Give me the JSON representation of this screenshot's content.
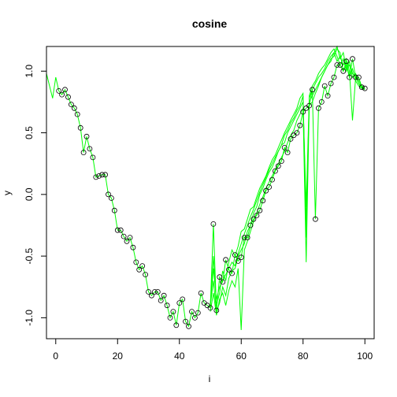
{
  "chart_data": {
    "type": "scatter",
    "title": "cosine",
    "xlabel": "i",
    "ylabel": "y",
    "xlim": [
      -3,
      103
    ],
    "ylim": [
      -1.17,
      1.2
    ],
    "x_ticks": [
      0,
      20,
      40,
      60,
      80,
      100
    ],
    "y_ticks": [
      1.0,
      0.5,
      0.0,
      -0.5,
      -1.0
    ],
    "x_tick_labels": [
      "0",
      "20",
      "40",
      "60",
      "80",
      "100"
    ],
    "y_tick_labels": [
      "1.0",
      "0.5",
      "0.0",
      "-0.5",
      "-1.0"
    ],
    "grid": false,
    "line_color": "#00ff00",
    "point_color": "#000000",
    "points": {
      "x": [
        1,
        2,
        3,
        4,
        5,
        6,
        7,
        8,
        9,
        10,
        11,
        12,
        13,
        14,
        15,
        16,
        17,
        18,
        19,
        20,
        21,
        22,
        23,
        24,
        25,
        26,
        27,
        28,
        29,
        30,
        31,
        32,
        33,
        34,
        35,
        36,
        37,
        38,
        39,
        40,
        41,
        42,
        43,
        44,
        45,
        46,
        47,
        48,
        49,
        50,
        51,
        52,
        53,
        54,
        55,
        56,
        57,
        58,
        59,
        60,
        61,
        62,
        63,
        64,
        65,
        66,
        67,
        68,
        69,
        70,
        71,
        72,
        73,
        74,
        75,
        76,
        77,
        78,
        79,
        80,
        81,
        82,
        83,
        84,
        85,
        86,
        87,
        88,
        89,
        90,
        91,
        92,
        93,
        94,
        95,
        96,
        97,
        98,
        99,
        100
      ],
      "y": [
        0.84,
        0.81,
        0.85,
        0.79,
        0.73,
        0.7,
        0.65,
        0.54,
        0.34,
        0.47,
        0.37,
        0.3,
        0.14,
        0.15,
        0.16,
        0.16,
        0.0,
        -0.03,
        -0.13,
        -0.29,
        -0.29,
        -0.34,
        -0.38,
        -0.35,
        -0.43,
        -0.55,
        -0.61,
        -0.58,
        -0.65,
        -0.79,
        -0.82,
        -0.79,
        -0.79,
        -0.86,
        -0.82,
        -0.9,
        -1.0,
        -0.95,
        -1.06,
        -0.88,
        -0.85,
        -1.03,
        -1.07,
        -0.95,
        -1.0,
        -0.96,
        -0.8,
        -0.88,
        -0.9,
        -0.92,
        -0.24,
        -0.94,
        -0.67,
        -0.71,
        -0.53,
        -0.61,
        -0.64,
        -0.49,
        -0.54,
        -0.51,
        -0.35,
        -0.35,
        -0.25,
        -0.2,
        -0.17,
        -0.13,
        -0.05,
        0.03,
        0.06,
        0.12,
        0.19,
        0.23,
        0.27,
        0.38,
        0.34,
        0.45,
        0.48,
        0.5,
        0.56,
        0.67,
        0.7,
        0.72,
        0.85,
        -0.2,
        0.7,
        0.75,
        0.88,
        0.8,
        0.9,
        0.95,
        1.05,
        1.05,
        1.0,
        1.08,
        0.95,
        1.1,
        0.95,
        0.95,
        0.87,
        0.86
      ]
    },
    "series": [
      {
        "x": [
          -3,
          -2,
          -1,
          0,
          1,
          2,
          3,
          4,
          5,
          6,
          7,
          8,
          9,
          10,
          11,
          12,
          13,
          14,
          15,
          16,
          17,
          18,
          19,
          20,
          21,
          22,
          23,
          24,
          25,
          26,
          27,
          28,
          29,
          30,
          31,
          32,
          33,
          34,
          35,
          36,
          37,
          38,
          39,
          40,
          41,
          42,
          43,
          44,
          45,
          46,
          47,
          48,
          49,
          50,
          51,
          52,
          53,
          54,
          55,
          56,
          57,
          58,
          59,
          60,
          61,
          62,
          63,
          64,
          65,
          66,
          67,
          68,
          69,
          70,
          71,
          72,
          73,
          74,
          75,
          76,
          77,
          78,
          79,
          80,
          81,
          82,
          83,
          84,
          85,
          86,
          87,
          88,
          89,
          90,
          91,
          92,
          93,
          94,
          95,
          96,
          97,
          98,
          99,
          100
        ],
        "y": [
          0.98,
          0.88,
          0.78,
          0.95,
          0.84,
          0.81,
          0.85,
          0.79,
          0.73,
          0.7,
          0.65,
          0.54,
          0.34,
          0.47,
          0.37,
          0.3,
          0.14,
          0.15,
          0.16,
          0.16,
          0.0,
          -0.03,
          -0.13,
          -0.29,
          -0.29,
          -0.34,
          -0.38,
          -0.35,
          -0.43,
          -0.55,
          -0.61,
          -0.58,
          -0.65,
          -0.79,
          -0.82,
          -0.79,
          -0.79,
          -0.86,
          -0.82,
          -0.9,
          -1.0,
          -0.95,
          -1.06,
          -0.88,
          -0.85,
          -1.03,
          -1.07,
          -0.95,
          -1.0,
          -0.96,
          -0.8,
          -0.88,
          -0.9,
          -0.92,
          -0.24,
          -0.94,
          -0.67,
          -0.71,
          -0.53,
          -0.61,
          -0.64,
          -0.49,
          -0.54,
          -0.51,
          -0.35,
          -0.35,
          -0.25,
          -0.2,
          -0.17,
          -0.13,
          -0.05,
          0.03,
          0.06,
          0.12,
          0.19,
          0.23,
          0.27,
          0.38,
          0.34,
          0.45,
          0.48,
          0.5,
          0.56,
          0.67,
          0.7,
          0.72,
          0.85,
          -0.2,
          0.7,
          0.75,
          0.88,
          0.8,
          0.9,
          0.95,
          1.05,
          1.05,
          1.0,
          1.08,
          0.95,
          1.1,
          0.95,
          0.95,
          0.87,
          0.86
        ]
      },
      {
        "x": [
          50,
          51,
          52,
          53,
          54,
          55,
          56,
          57,
          58,
          59,
          60,
          61,
          62,
          63,
          64,
          65,
          66,
          67,
          68,
          69,
          70,
          71,
          72,
          73,
          74,
          75,
          76,
          77,
          78,
          79,
          80,
          81,
          82,
          83,
          84,
          85,
          86,
          87,
          88,
          89,
          90,
          91,
          92,
          93,
          94,
          95,
          96,
          97,
          98,
          99,
          100
        ],
        "y": [
          -0.92,
          -0.5,
          -0.9,
          -0.8,
          -0.62,
          -0.7,
          -0.55,
          -0.45,
          -0.5,
          -0.42,
          -0.3,
          -0.28,
          -0.2,
          -0.12,
          -0.1,
          -0.02,
          0.05,
          0.1,
          0.15,
          0.22,
          0.28,
          0.32,
          0.38,
          0.44,
          0.5,
          0.55,
          0.6,
          0.65,
          0.7,
          0.78,
          0.82,
          -0.35,
          0.8,
          0.88,
          0.92,
          0.98,
          1.02,
          1.05,
          1.1,
          1.15,
          1.18,
          1.12,
          1.05,
          1.1,
          1.0,
          1.08,
          0.98,
          0.95,
          0.9,
          0.88,
          0.86
        ]
      },
      {
        "x": [
          50,
          51,
          52,
          53,
          54,
          55,
          56,
          57,
          58,
          59,
          60,
          61,
          62,
          63,
          64,
          65,
          66,
          67,
          68,
          69,
          70,
          71,
          72,
          73,
          74,
          75,
          76,
          77,
          78,
          79,
          80,
          81,
          82,
          83,
          84,
          85,
          86,
          87,
          88,
          89,
          90,
          91,
          92,
          93,
          94,
          95,
          96,
          97,
          98,
          99,
          100
        ],
        "y": [
          -0.95,
          -0.8,
          -0.98,
          -0.85,
          -0.8,
          -0.9,
          -0.78,
          -0.7,
          -0.75,
          -0.6,
          -1.1,
          -0.45,
          -0.38,
          -0.3,
          -0.22,
          -0.15,
          -0.08,
          -0.02,
          0.05,
          0.1,
          0.15,
          0.2,
          0.25,
          0.3,
          0.35,
          0.42,
          0.48,
          0.52,
          0.6,
          0.65,
          0.7,
          -0.55,
          0.72,
          0.75,
          0.82,
          0.88,
          0.95,
          1.0,
          1.05,
          1.08,
          1.15,
          1.2,
          1.1,
          1.15,
          1.02,
          1.05,
          0.95,
          0.98,
          0.92,
          0.88,
          0.86
        ]
      },
      {
        "x": [
          50,
          51,
          52,
          53,
          54,
          55,
          56,
          57,
          58,
          59,
          60,
          61,
          62,
          63,
          64,
          65,
          66,
          67,
          68,
          69,
          70,
          71,
          72,
          73,
          74,
          75,
          76,
          77,
          78,
          79,
          80,
          81,
          82,
          83,
          84,
          85,
          86,
          87,
          88,
          89,
          90,
          91,
          92,
          93,
          94,
          95,
          96,
          97,
          98,
          99,
          100
        ],
        "y": [
          -0.9,
          -0.7,
          -0.95,
          -0.88,
          -0.75,
          -0.82,
          -0.68,
          -0.62,
          -0.6,
          -0.5,
          -0.45,
          -0.4,
          -0.3,
          -0.25,
          -0.15,
          -0.1,
          0.0,
          0.05,
          0.12,
          0.18,
          0.22,
          0.28,
          0.35,
          0.4,
          0.42,
          0.5,
          0.55,
          0.6,
          0.65,
          0.7,
          0.75,
          -0.1,
          0.78,
          0.85,
          0.9,
          0.95,
          0.98,
          1.02,
          1.08,
          1.12,
          1.15,
          1.08,
          1.12,
          1.05,
          1.1,
          1.0,
          0.6,
          0.95,
          0.9,
          0.86,
          0.85
        ]
      },
      {
        "x": [
          50,
          51,
          52,
          53,
          54,
          55,
          56,
          57,
          58,
          59,
          60,
          61,
          62,
          63,
          64,
          65,
          66,
          67,
          68,
          69,
          70,
          71,
          72,
          73,
          74,
          75,
          76,
          77,
          78,
          79,
          80,
          81,
          82,
          83,
          84,
          85,
          86,
          87,
          88,
          89,
          90,
          91,
          92,
          93,
          94,
          95,
          96,
          97,
          98,
          99,
          100
        ],
        "y": [
          -0.88,
          -0.6,
          -0.85,
          -0.75,
          -0.7,
          -0.65,
          -0.6,
          -0.55,
          -0.58,
          -0.48,
          -0.4,
          -0.32,
          -0.25,
          -0.18,
          -0.12,
          -0.05,
          0.02,
          0.08,
          0.14,
          0.2,
          0.25,
          0.3,
          0.35,
          0.4,
          0.48,
          0.52,
          0.58,
          0.62,
          0.68,
          0.72,
          0.8,
          -0.25,
          0.75,
          0.8,
          0.85,
          0.9,
          0.95,
          1.0,
          1.05,
          1.1,
          1.12,
          1.18,
          1.15,
          1.0,
          1.05,
          0.95,
          1.02,
          0.92,
          0.88,
          0.86,
          0.86
        ]
      }
    ]
  }
}
